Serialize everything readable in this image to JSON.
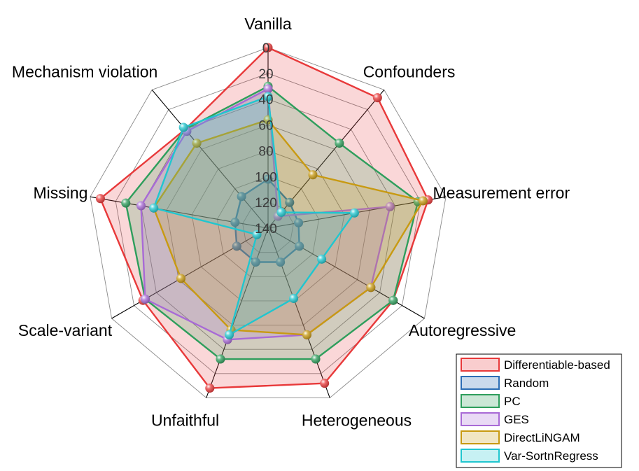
{
  "chart_data": {
    "type": "radar",
    "r_range": [
      0,
      140
    ],
    "r_reversed": true,
    "ticks": [
      "0",
      "20",
      "40",
      "60",
      "80",
      "100",
      "120",
      "140"
    ],
    "categories": [
      "Vanilla",
      "Confounders",
      "Measurement error",
      "Autoregressive",
      "Heterogeneous",
      "Unfaithful",
      "Scale-variant",
      "Missing",
      "Mechanism violation"
    ],
    "series": [
      {
        "name": "Differentiable-based",
        "color": "#e8393a",
        "values": [
          0,
          8,
          14,
          28,
          12,
          8,
          28,
          8,
          40
        ]
      },
      {
        "name": "Random",
        "color": "#2b6db5",
        "values": [
          102,
          114,
          116,
          112,
          112,
          112,
          112,
          114,
          108
        ]
      },
      {
        "name": "PC",
        "color": "#2e9e5c",
        "values": [
          30,
          54,
          22,
          28,
          32,
          32,
          30,
          28,
          40
        ]
      },
      {
        "name": "GES",
        "color": "#a86ad6",
        "values": [
          32,
          128,
          44,
          48,
          52,
          48,
          30,
          40,
          42
        ]
      },
      {
        "name": "DirectLiNGAM",
        "color": "#c89a12",
        "values": [
          56,
          86,
          18,
          48,
          52,
          56,
          62,
          50,
          54
        ]
      },
      {
        "name": "Var-SortnRegress",
        "color": "#20c6cf",
        "values": [
          38,
          124,
          72,
          92,
          82,
          52,
          130,
          50,
          38
        ]
      }
    ],
    "legend_position": "bottom-right",
    "grid": true
  }
}
